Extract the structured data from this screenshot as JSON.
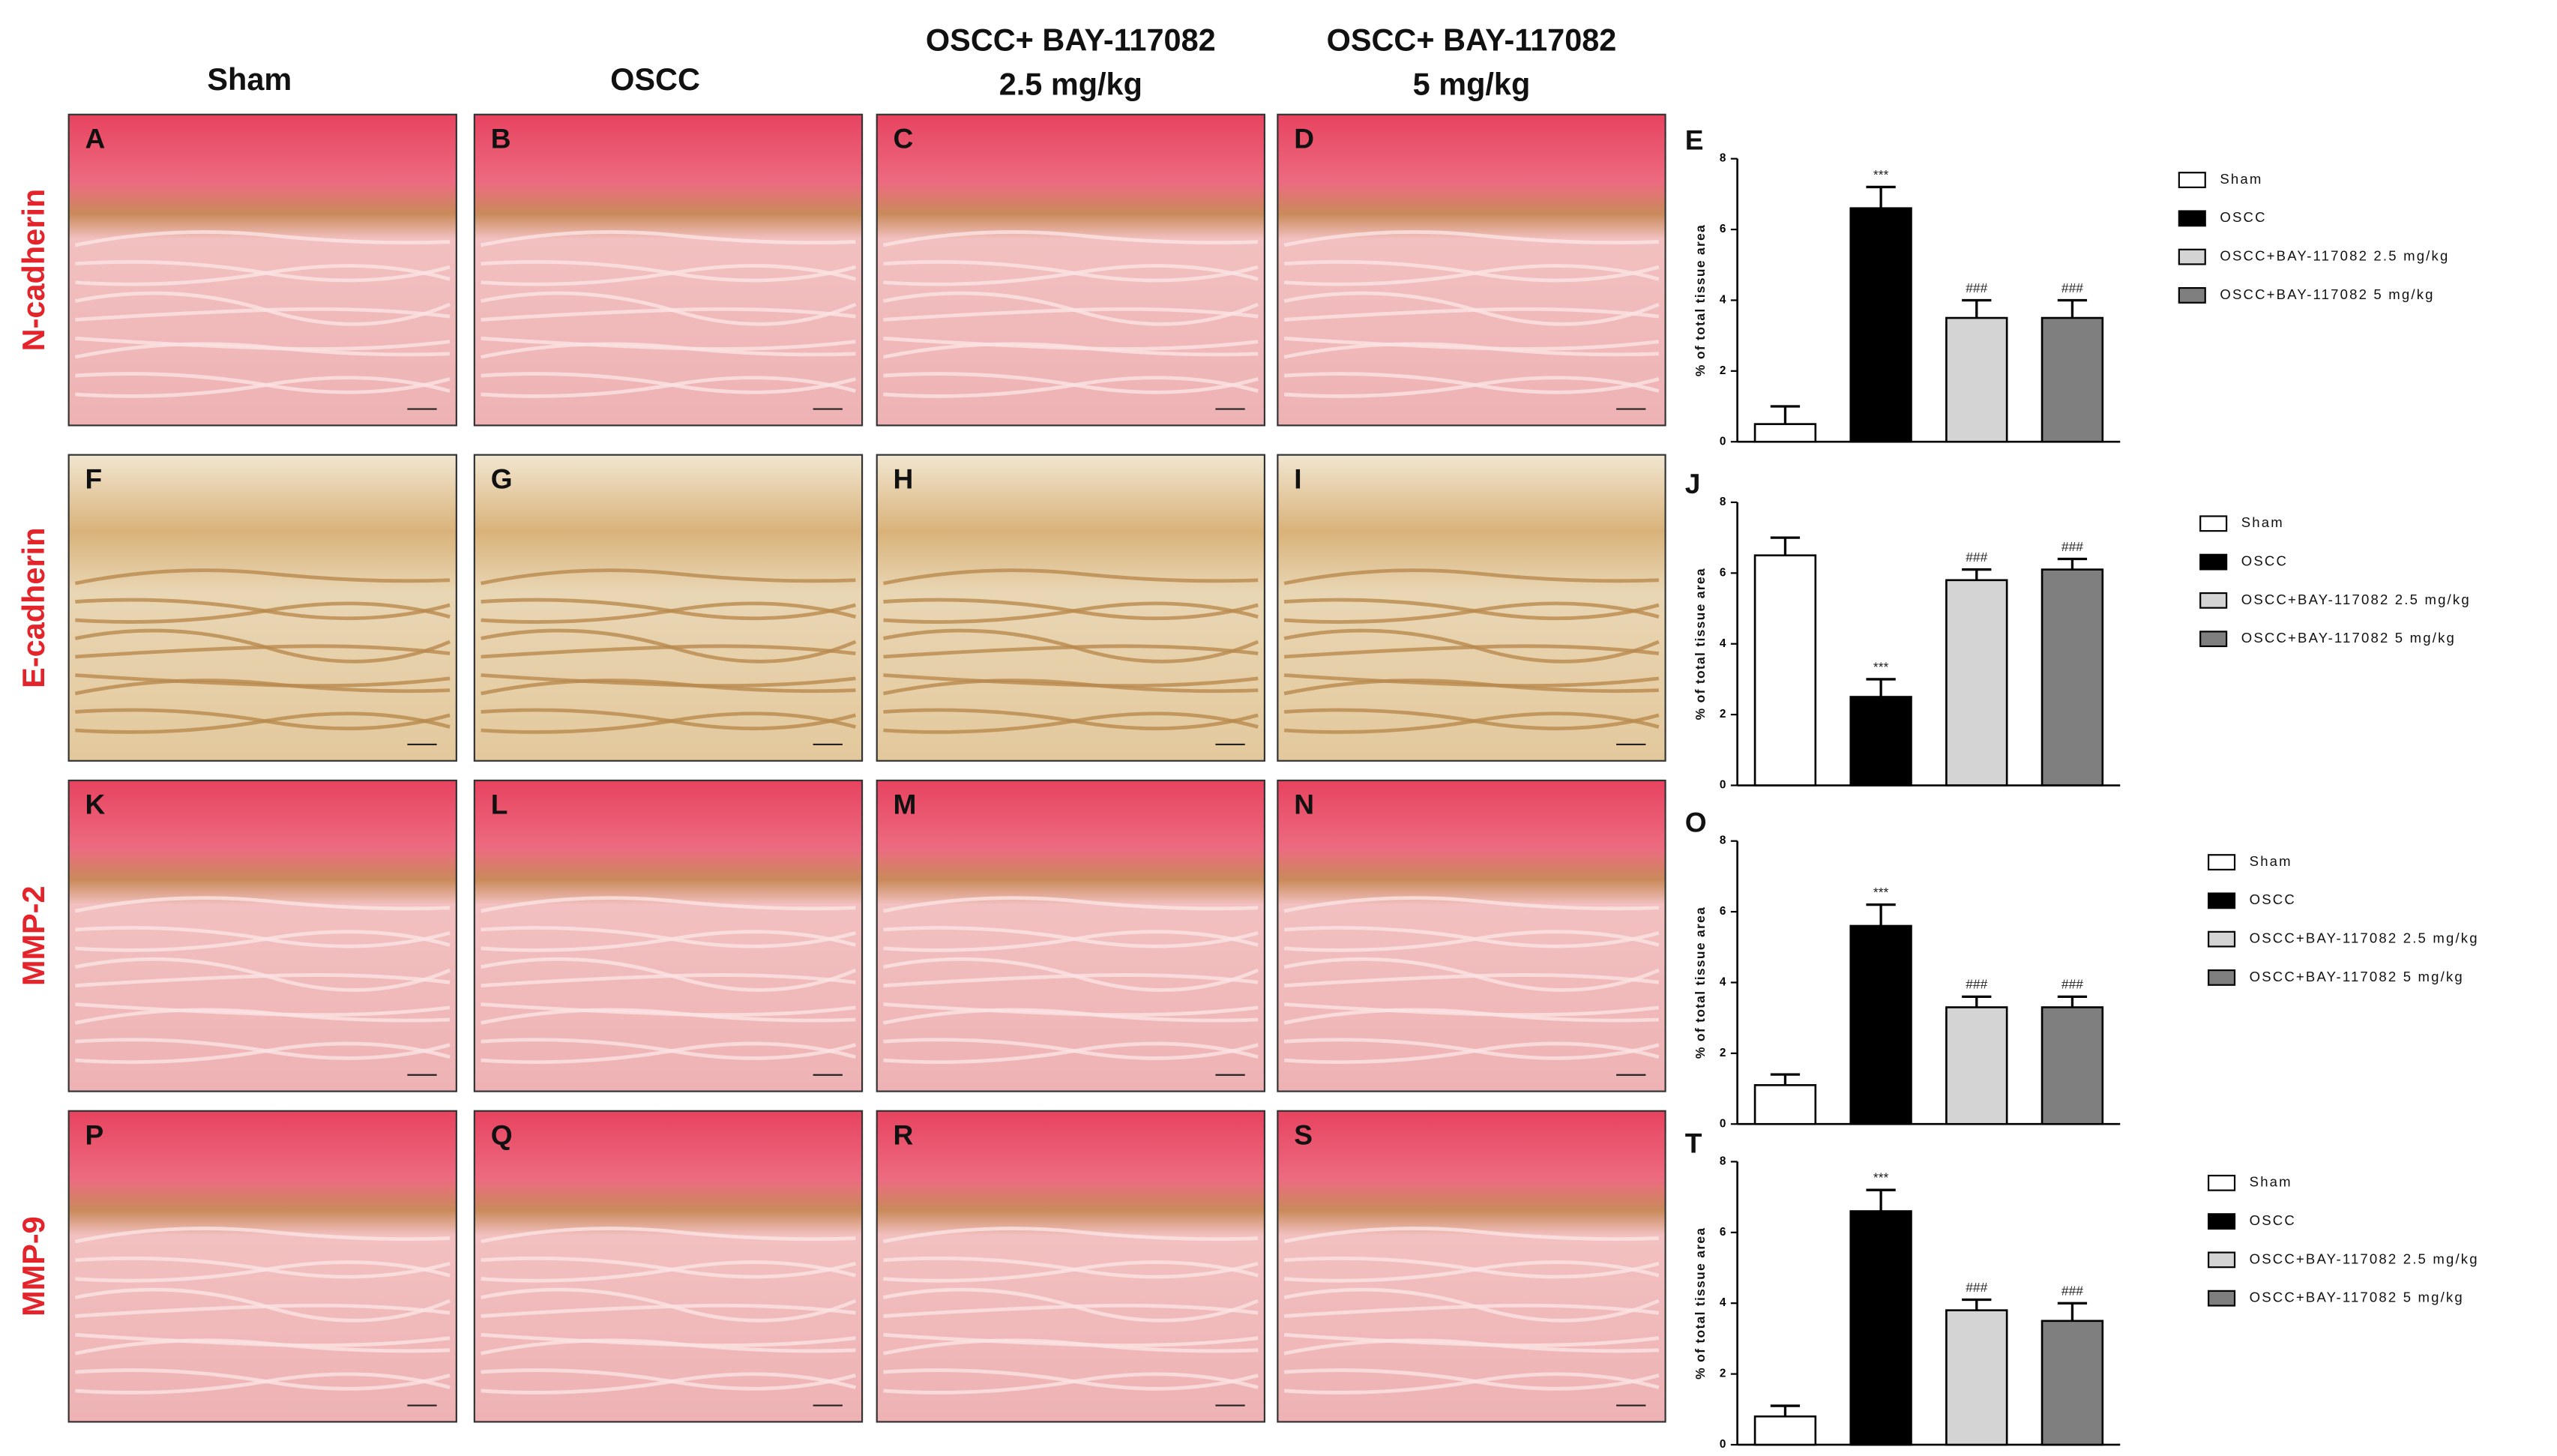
{
  "columns": [
    [
      "Sham"
    ],
    [
      "OSCC"
    ],
    [
      "OSCC+ BAY-117082",
      "2.5 mg/kg"
    ],
    [
      "OSCC+ BAY-117082",
      "5 mg/kg"
    ]
  ],
  "rows": [
    "N-cadherin",
    "E-cadherin",
    "MMP-2",
    "MMP-9"
  ],
  "panels": [
    [
      "A",
      "B",
      "C",
      "D"
    ],
    [
      "F",
      "G",
      "H",
      "I"
    ],
    [
      "K",
      "L",
      "M",
      "N"
    ],
    [
      "P",
      "Q",
      "R",
      "S"
    ]
  ],
  "chart_data": [
    {
      "type": "bar",
      "panel_label": "E",
      "ylabel": "% of total tissue area",
      "categories": [
        "Sham",
        "OSCC",
        "OSCC+BAY-117082 2.5 mg/kg",
        "OSCC+BAY-117082 5 mg/kg"
      ],
      "colors": [
        "#ffffff",
        "#000000",
        "#d4d4d4",
        "#7f7f7f"
      ],
      "values": [
        0.5,
        6.6,
        3.5,
        3.5
      ],
      "errors": [
        0.5,
        0.6,
        0.5,
        0.5
      ],
      "significance": [
        null,
        "***",
        "###",
        "###"
      ],
      "ylim": [
        0,
        8
      ],
      "yticks": [
        0,
        2,
        4,
        6,
        8
      ]
    },
    {
      "type": "bar",
      "panel_label": "J",
      "ylabel": "% of total tissue area",
      "categories": [
        "Sham",
        "OSCC",
        "OSCC+BAY-117082 2.5 mg/kg",
        "OSCC+BAY-117082 5 mg/kg"
      ],
      "colors": [
        "#ffffff",
        "#000000",
        "#d4d4d4",
        "#7f7f7f"
      ],
      "values": [
        6.5,
        2.5,
        5.8,
        6.1
      ],
      "errors": [
        0.5,
        0.5,
        0.3,
        0.3
      ],
      "significance": [
        null,
        "***",
        "###",
        "###"
      ],
      "ylim": [
        0,
        8
      ],
      "yticks": [
        0,
        2,
        4,
        6,
        8
      ]
    },
    {
      "type": "bar",
      "panel_label": "O",
      "ylabel": "% of total tissue area",
      "categories": [
        "Sham",
        "OSCC",
        "OSCC+BAY-117082 2.5 mg/kg",
        "OSCC+BAY-117082 5 mg/kg"
      ],
      "colors": [
        "#ffffff",
        "#000000",
        "#d4d4d4",
        "#7f7f7f"
      ],
      "values": [
        1.1,
        5.6,
        3.3,
        3.3
      ],
      "errors": [
        0.3,
        0.6,
        0.3,
        0.3
      ],
      "significance": [
        null,
        "***",
        "###",
        "###"
      ],
      "ylim": [
        0,
        8
      ],
      "yticks": [
        0,
        2,
        4,
        6,
        8
      ]
    },
    {
      "type": "bar",
      "panel_label": "T",
      "ylabel": "% of total tissue area",
      "categories": [
        "Sham",
        "OSCC",
        "OSCC+BAY-117082 2.5 mg/kg",
        "OSCC+BAY-117082 5 mg/kg"
      ],
      "colors": [
        "#ffffff",
        "#000000",
        "#d4d4d4",
        "#7f7f7f"
      ],
      "values": [
        0.8,
        6.6,
        3.8,
        3.5
      ],
      "errors": [
        0.3,
        0.6,
        0.3,
        0.5
      ],
      "significance": [
        null,
        "***",
        "###",
        "###"
      ],
      "ylim": [
        0,
        8
      ],
      "yticks": [
        0,
        2,
        4,
        6,
        8
      ]
    }
  ]
}
